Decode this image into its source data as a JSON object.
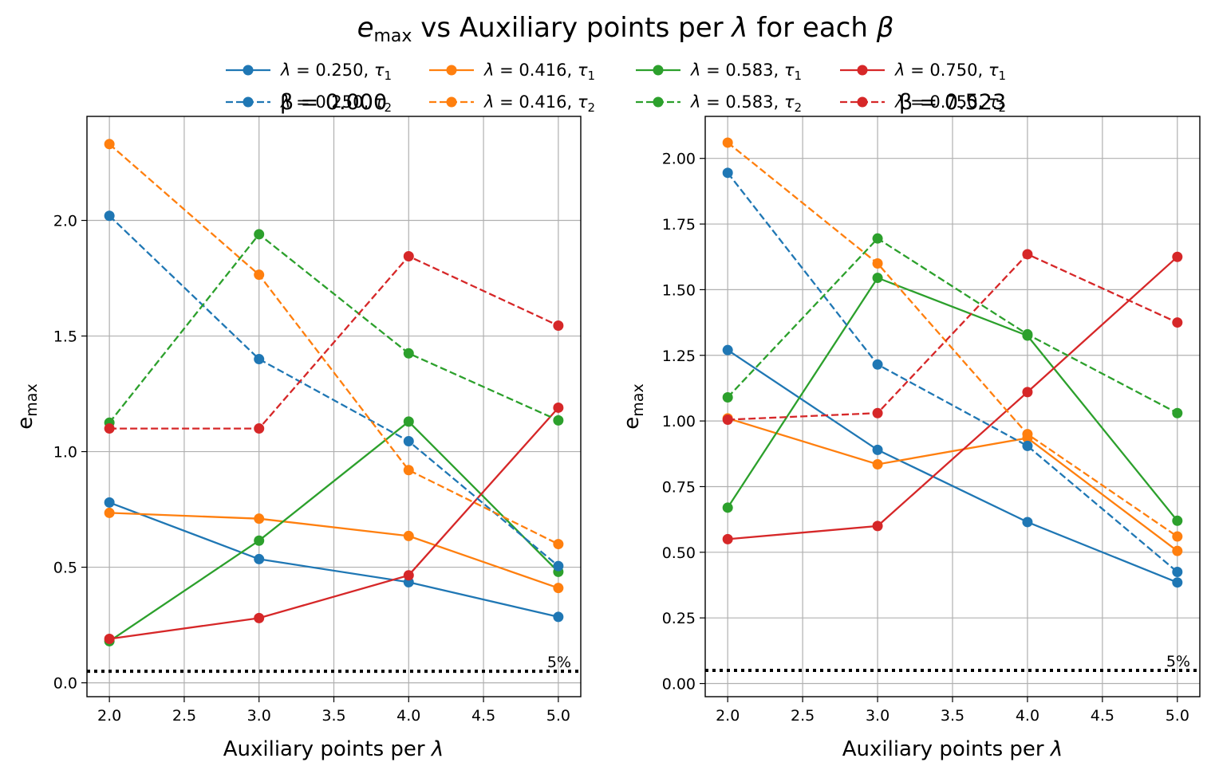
{
  "figure": {
    "title": "e_max vs Auxiliary points per λ for each β",
    "title_parts": {
      "e": "e",
      "sub": "max",
      "rest": " vs Auxiliary points per ",
      "lam": "λ",
      "mid": " for each ",
      "beta": "β"
    }
  },
  "colors": {
    "blue": "#1f77b4",
    "orange": "#ff7f0e",
    "green": "#2ca02c",
    "red": "#d62728",
    "grid": "#b0b0b0",
    "threshold": "#000000"
  },
  "legend": {
    "placement": "top-center",
    "entries": [
      {
        "lam": "λ",
        "eq": " = 0.250, ",
        "tau": "τ",
        "sub": "1",
        "color": "#1f77b4",
        "style": "solid"
      },
      {
        "lam": "λ",
        "eq": " = 0.416, ",
        "tau": "τ",
        "sub": "1",
        "color": "#ff7f0e",
        "style": "solid"
      },
      {
        "lam": "λ",
        "eq": " = 0.583, ",
        "tau": "τ",
        "sub": "1",
        "color": "#2ca02c",
        "style": "solid"
      },
      {
        "lam": "λ",
        "eq": " = 0.750, ",
        "tau": "τ",
        "sub": "1",
        "color": "#d62728",
        "style": "solid"
      },
      {
        "lam": "λ",
        "eq": " = 0.250, ",
        "tau": "τ",
        "sub": "2",
        "color": "#1f77b4",
        "style": "dashed"
      },
      {
        "lam": "λ",
        "eq": " = 0.416, ",
        "tau": "τ",
        "sub": "2",
        "color": "#ff7f0e",
        "style": "dashed"
      },
      {
        "lam": "λ",
        "eq": " = 0.583, ",
        "tau": "τ",
        "sub": "2",
        "color": "#2ca02c",
        "style": "dashed"
      },
      {
        "lam": "λ",
        "eq": " = 0.750, ",
        "tau": "τ",
        "sub": "2",
        "color": "#d62728",
        "style": "dashed"
      }
    ]
  },
  "chart_data": [
    {
      "type": "line",
      "title": "β = 0.000",
      "xlabel": "Auxiliary points per λ",
      "ylabel": "e_max",
      "x": [
        2.0,
        3.0,
        4.0,
        5.0
      ],
      "xlim": [
        1.85,
        5.15
      ],
      "ylim": [
        -0.06,
        2.45
      ],
      "xticks": [
        "2.0",
        "2.5",
        "3.0",
        "3.5",
        "4.0",
        "4.5",
        "5.0"
      ],
      "yticks": [
        "0.0",
        "0.5",
        "1.0",
        "1.5",
        "2.0"
      ],
      "grid": true,
      "threshold": {
        "value": 0.05,
        "label": "5%"
      },
      "series": [
        {
          "name": "λ = 0.250, τ1",
          "color": "#1f77b4",
          "style": "solid",
          "values": [
            0.78,
            0.535,
            0.435,
            0.285
          ]
        },
        {
          "name": "λ = 0.416, τ1",
          "color": "#ff7f0e",
          "style": "solid",
          "values": [
            0.735,
            0.71,
            0.635,
            0.41
          ]
        },
        {
          "name": "λ = 0.583, τ1",
          "color": "#2ca02c",
          "style": "solid",
          "values": [
            0.18,
            0.615,
            1.13,
            0.48
          ]
        },
        {
          "name": "λ = 0.750, τ1",
          "color": "#d62728",
          "style": "solid",
          "values": [
            0.19,
            0.28,
            0.465,
            1.19
          ]
        },
        {
          "name": "λ = 0.250, τ2",
          "color": "#1f77b4",
          "style": "dashed",
          "values": [
            2.02,
            1.4,
            1.045,
            0.505
          ]
        },
        {
          "name": "λ = 0.416, τ2",
          "color": "#ff7f0e",
          "style": "dashed",
          "values": [
            2.33,
            1.765,
            0.92,
            0.6
          ]
        },
        {
          "name": "λ = 0.583, τ2",
          "color": "#2ca02c",
          "style": "dashed",
          "values": [
            1.125,
            1.94,
            1.425,
            1.135
          ]
        },
        {
          "name": "λ = 0.750, τ2",
          "color": "#d62728",
          "style": "dashed",
          "values": [
            1.1,
            1.1,
            1.845,
            1.545
          ]
        }
      ]
    },
    {
      "type": "line",
      "title": "β = 0.523",
      "xlabel": "Auxiliary points per λ",
      "ylabel": "e_max",
      "x": [
        2.0,
        3.0,
        4.0,
        5.0
      ],
      "xlim": [
        1.85,
        5.15
      ],
      "ylim": [
        -0.05,
        2.16
      ],
      "xticks": [
        "2.0",
        "2.5",
        "3.0",
        "3.5",
        "4.0",
        "4.5",
        "5.0"
      ],
      "yticks": [
        "0.00",
        "0.25",
        "0.50",
        "0.75",
        "1.00",
        "1.25",
        "1.50",
        "1.75",
        "2.00"
      ],
      "grid": true,
      "threshold": {
        "value": 0.05,
        "label": "5%"
      },
      "series": [
        {
          "name": "λ = 0.250, τ1",
          "color": "#1f77b4",
          "style": "solid",
          "values": [
            1.27,
            0.89,
            0.615,
            0.385
          ]
        },
        {
          "name": "λ = 0.416, τ1",
          "color": "#ff7f0e",
          "style": "solid",
          "values": [
            1.01,
            0.835,
            0.935,
            0.505
          ]
        },
        {
          "name": "λ = 0.583, τ1",
          "color": "#2ca02c",
          "style": "solid",
          "values": [
            0.67,
            1.545,
            1.325,
            0.62
          ]
        },
        {
          "name": "λ = 0.750, τ1",
          "color": "#d62728",
          "style": "solid",
          "values": [
            0.55,
            0.6,
            1.11,
            1.625
          ]
        },
        {
          "name": "λ = 0.250, τ2",
          "color": "#1f77b4",
          "style": "dashed",
          "values": [
            1.945,
            1.215,
            0.905,
            0.425
          ]
        },
        {
          "name": "λ = 0.416, τ2",
          "color": "#ff7f0e",
          "style": "dashed",
          "values": [
            2.06,
            1.6,
            0.95,
            0.56
          ]
        },
        {
          "name": "λ = 0.583, τ2",
          "color": "#2ca02c",
          "style": "dashed",
          "values": [
            1.09,
            1.695,
            1.33,
            1.03
          ]
        },
        {
          "name": "λ = 0.750, τ2",
          "color": "#d62728",
          "style": "dashed",
          "values": [
            1.005,
            1.03,
            1.635,
            1.375
          ]
        }
      ]
    }
  ]
}
